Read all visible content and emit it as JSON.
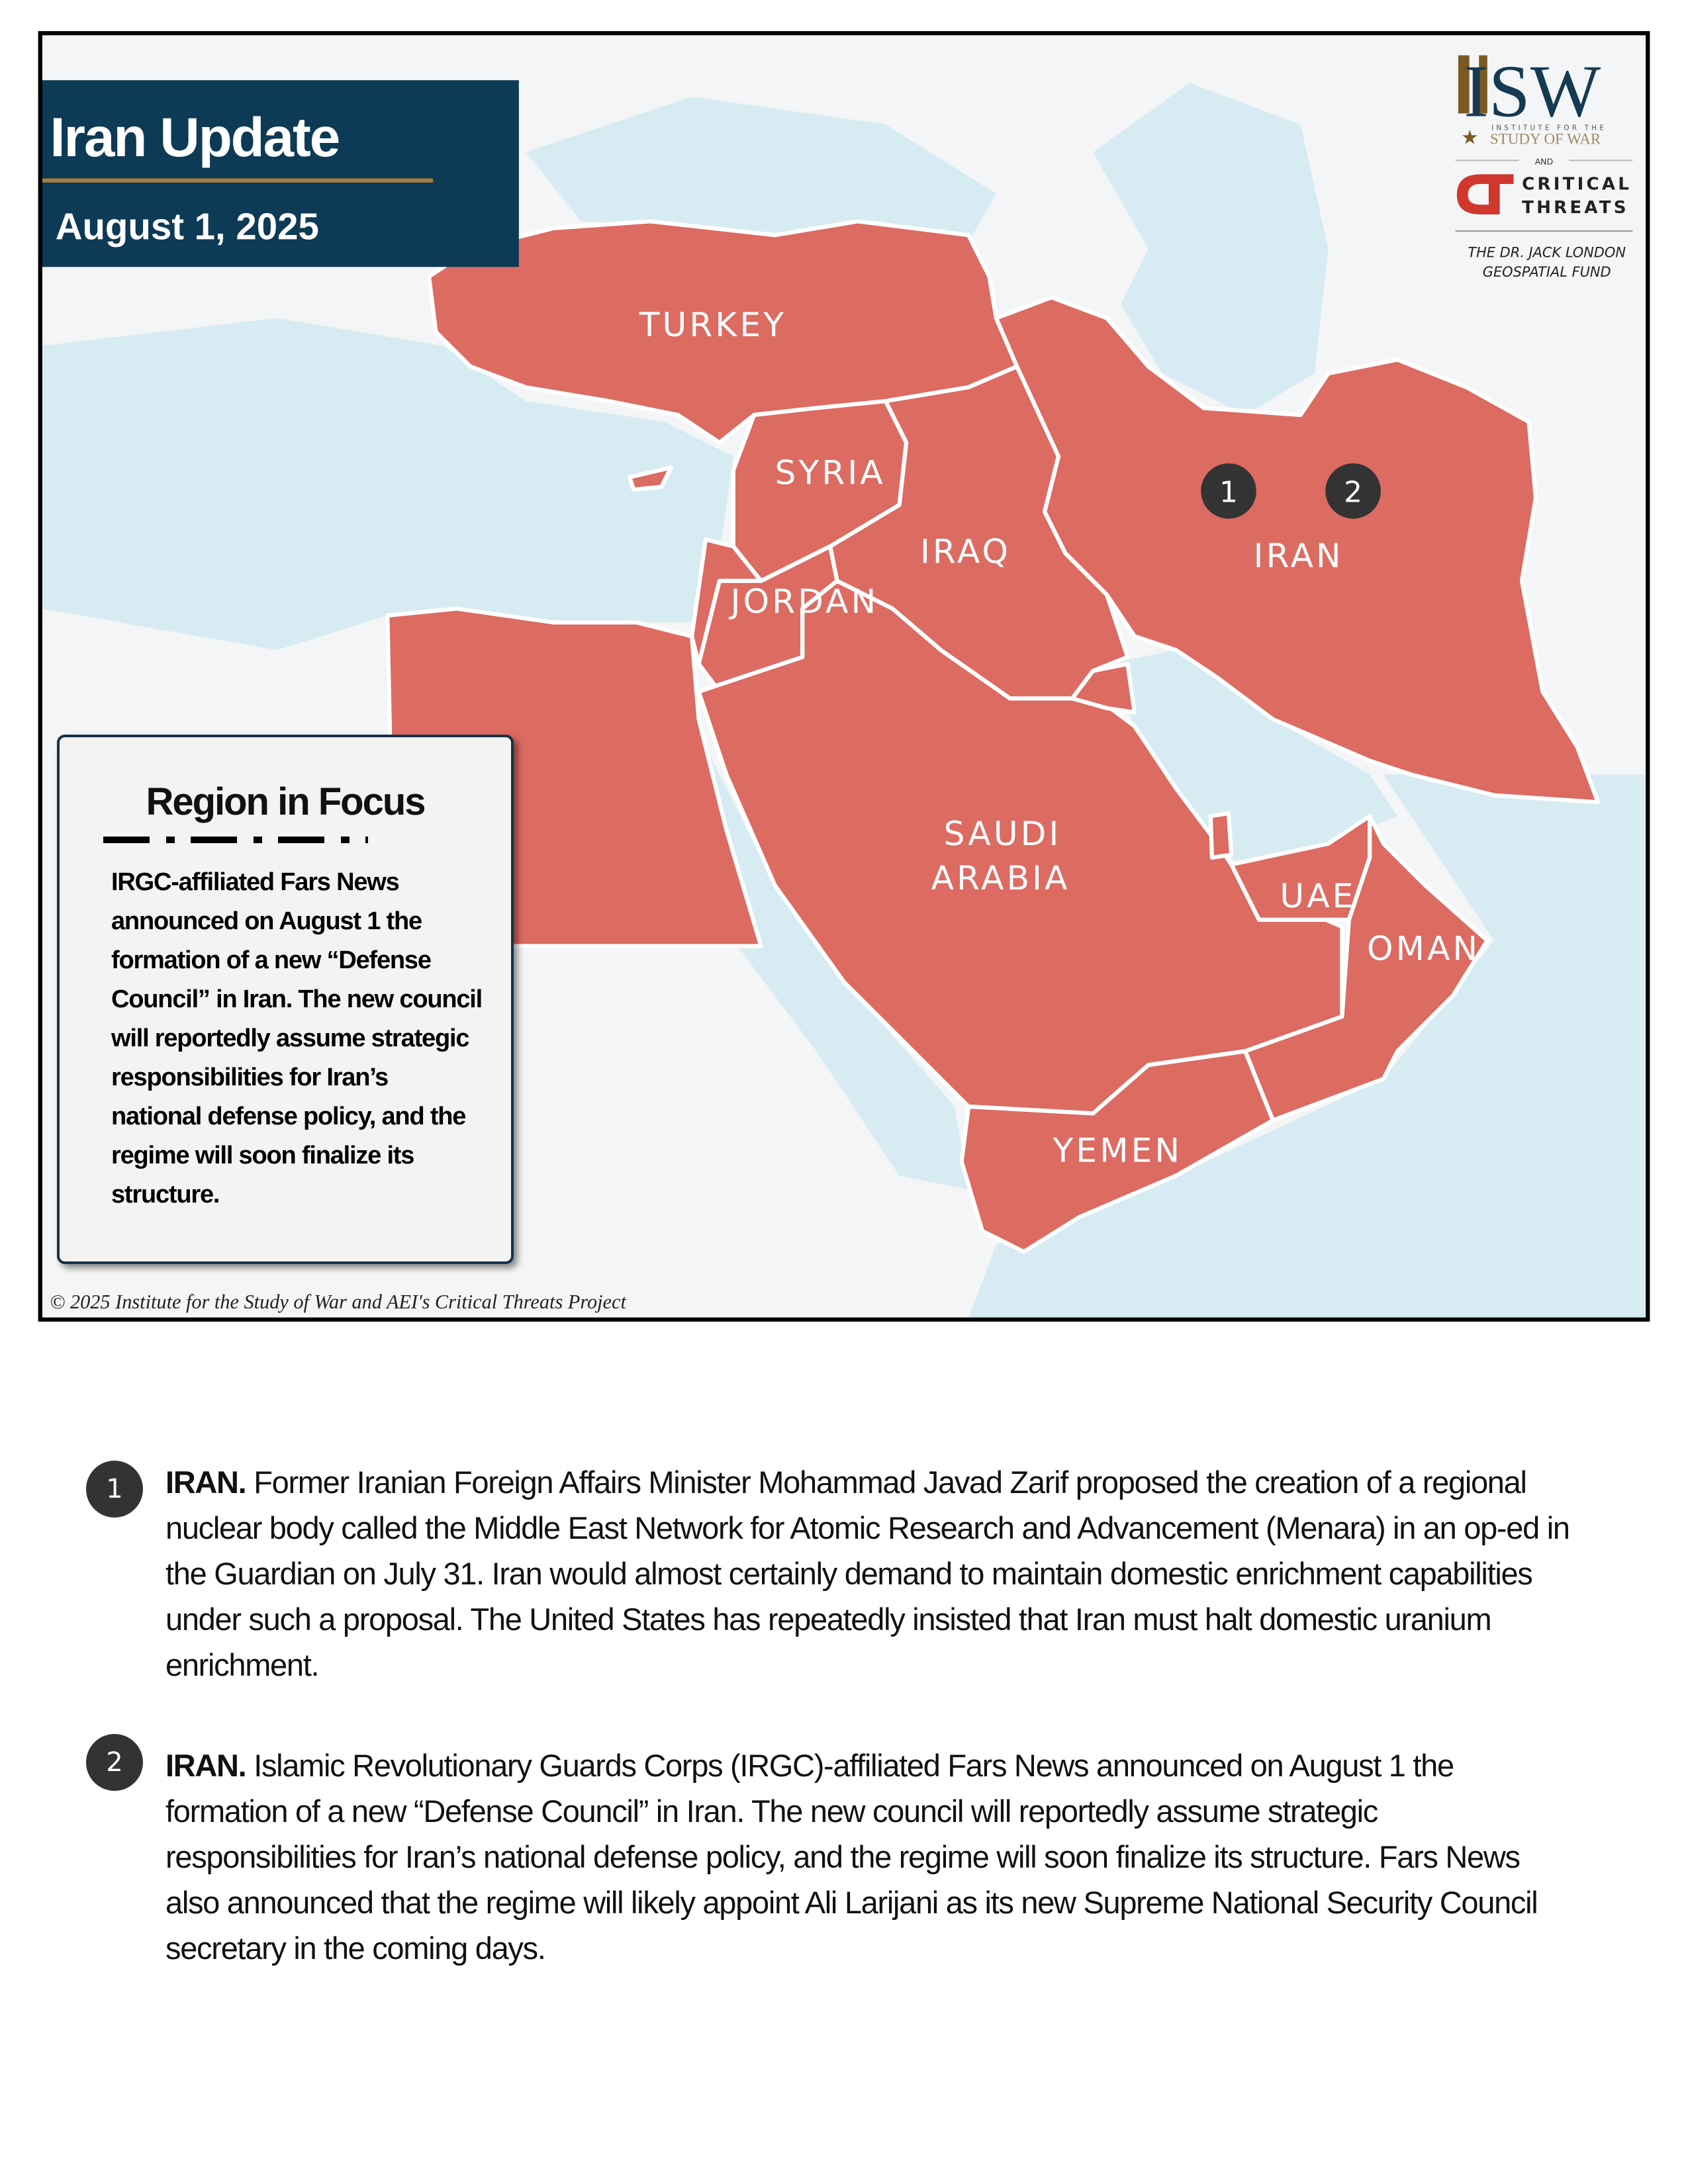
{
  "header": {
    "title": "Iran Update",
    "date": "August 1, 2025"
  },
  "logos": {
    "isw": "ISW",
    "isw_sub1": "INSTITUTE FOR THE",
    "isw_sub2": "STUDY OF WAR",
    "and": "AND",
    "ct": "CRITICAL THREATS",
    "fund_line1": "THE DR. JACK LONDON",
    "fund_line2": "GEOSPATIAL FUND"
  },
  "map": {
    "land_color": "#dc6b62",
    "water_color": "#d6ebf2",
    "countries": [
      "TURKEY",
      "SYRIA",
      "IRAQ",
      "JORDAN",
      "IRAN",
      "SAUDI",
      "ARABIA",
      "UAE",
      "OMAN",
      "YEMEN"
    ],
    "markers": [
      "1",
      "2"
    ],
    "copyright": "© 2025 Institute for the Study of War and AEI's Critical Threats Project"
  },
  "region_focus": {
    "title": "Region in Focus",
    "body": "IRGC-affiliated Fars News announced on August 1 the formation of a new “Defense Council” in Iran. The new council will reportedly assume strategic responsibilities for Iran’s national defense policy, and the regime will soon finalize its structure."
  },
  "items": [
    {
      "number": "1",
      "lead": "IRAN.",
      "text": " Former Iranian Foreign Affairs Minister Mohammad Javad Zarif proposed the creation of a regional nuclear body called the Middle East Network for Atomic Research and Advancement (Menara) in an op-ed in the Guardian on July 31. Iran would almost certainly demand to maintain domestic enrichment capabilities under such a proposal. The United States has repeatedly insisted that Iran must halt domestic uranium enrichment."
    },
    {
      "number": "2",
      "lead": "IRAN.",
      "text": " Islamic Revolutionary Guards Corps (IRGC)-affiliated Fars News announced on August 1 the formation of a new “Defense Council” in Iran. The new council will reportedly assume strategic responsibilities for Iran’s national defense policy, and the regime will soon finalize its structure. Fars News also announced that the regime will likely appoint Ali Larijani as its new Supreme National Security Council secretary in the coming days."
    }
  ]
}
